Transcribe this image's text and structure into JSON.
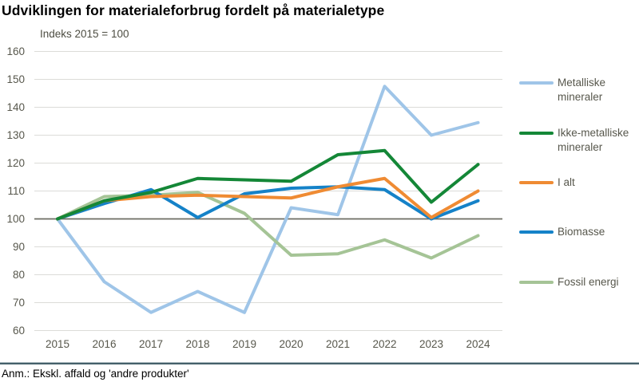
{
  "title": "Udviklingen for materialeforbrug fordelt på materialetype",
  "subtitle": "Indeks 2015 = 100",
  "note": "Anm.: Ekskl. affald og 'andre produkter'",
  "colors": {
    "grid": "#dcdcd8",
    "baseline": "#6c6c62",
    "tick_text": "#57574c",
    "footer_rule": "#45606a"
  },
  "chart_data": {
    "type": "line",
    "title": "Udviklingen for materialeforbrug fordelt på materialetype",
    "subtitle": "Indeks 2015 = 100",
    "xlabel": "",
    "ylabel": "Indeks 2015 = 100",
    "ylim": [
      60,
      160
    ],
    "yticks": [
      60,
      70,
      80,
      90,
      100,
      110,
      120,
      130,
      140,
      150,
      160
    ],
    "baseline": 100,
    "grid": true,
    "legend_position": "right",
    "categories": [
      "2015",
      "2016",
      "2017",
      "2018",
      "2019",
      "2020",
      "2021",
      "2022",
      "2023",
      "2024"
    ],
    "series": [
      {
        "id": "metalliske-mineraler",
        "name": "Metalliske mineraler",
        "color": "#9fc5e8",
        "values": [
          100,
          77.5,
          66.5,
          74,
          66.5,
          104,
          101.5,
          147.5,
          130,
          134.5
        ]
      },
      {
        "id": "ikke-metalliske-mineraler",
        "name": "Ikke-metalliske mineraler",
        "color": "#148737",
        "values": [
          100,
          106.5,
          109.5,
          114.5,
          114,
          113.5,
          123,
          124.5,
          106,
          119.5
        ]
      },
      {
        "id": "i-alt",
        "name": "I alt",
        "color": "#ef8b33",
        "values": [
          100,
          106.5,
          108,
          108.5,
          108,
          107.5,
          111.5,
          114.5,
          100.5,
          110
        ]
      },
      {
        "id": "biomasse",
        "name": "Biomasse",
        "color": "#1582c8",
        "values": [
          100,
          105.5,
          110.5,
          100.5,
          109,
          111,
          111.5,
          110.5,
          100,
          106.5
        ]
      },
      {
        "id": "fossil-energi",
        "name": "Fossil energi",
        "color": "#a5c496",
        "values": [
          100,
          108,
          108.5,
          109.5,
          102,
          87,
          87.5,
          92.5,
          86,
          94
        ]
      }
    ]
  }
}
